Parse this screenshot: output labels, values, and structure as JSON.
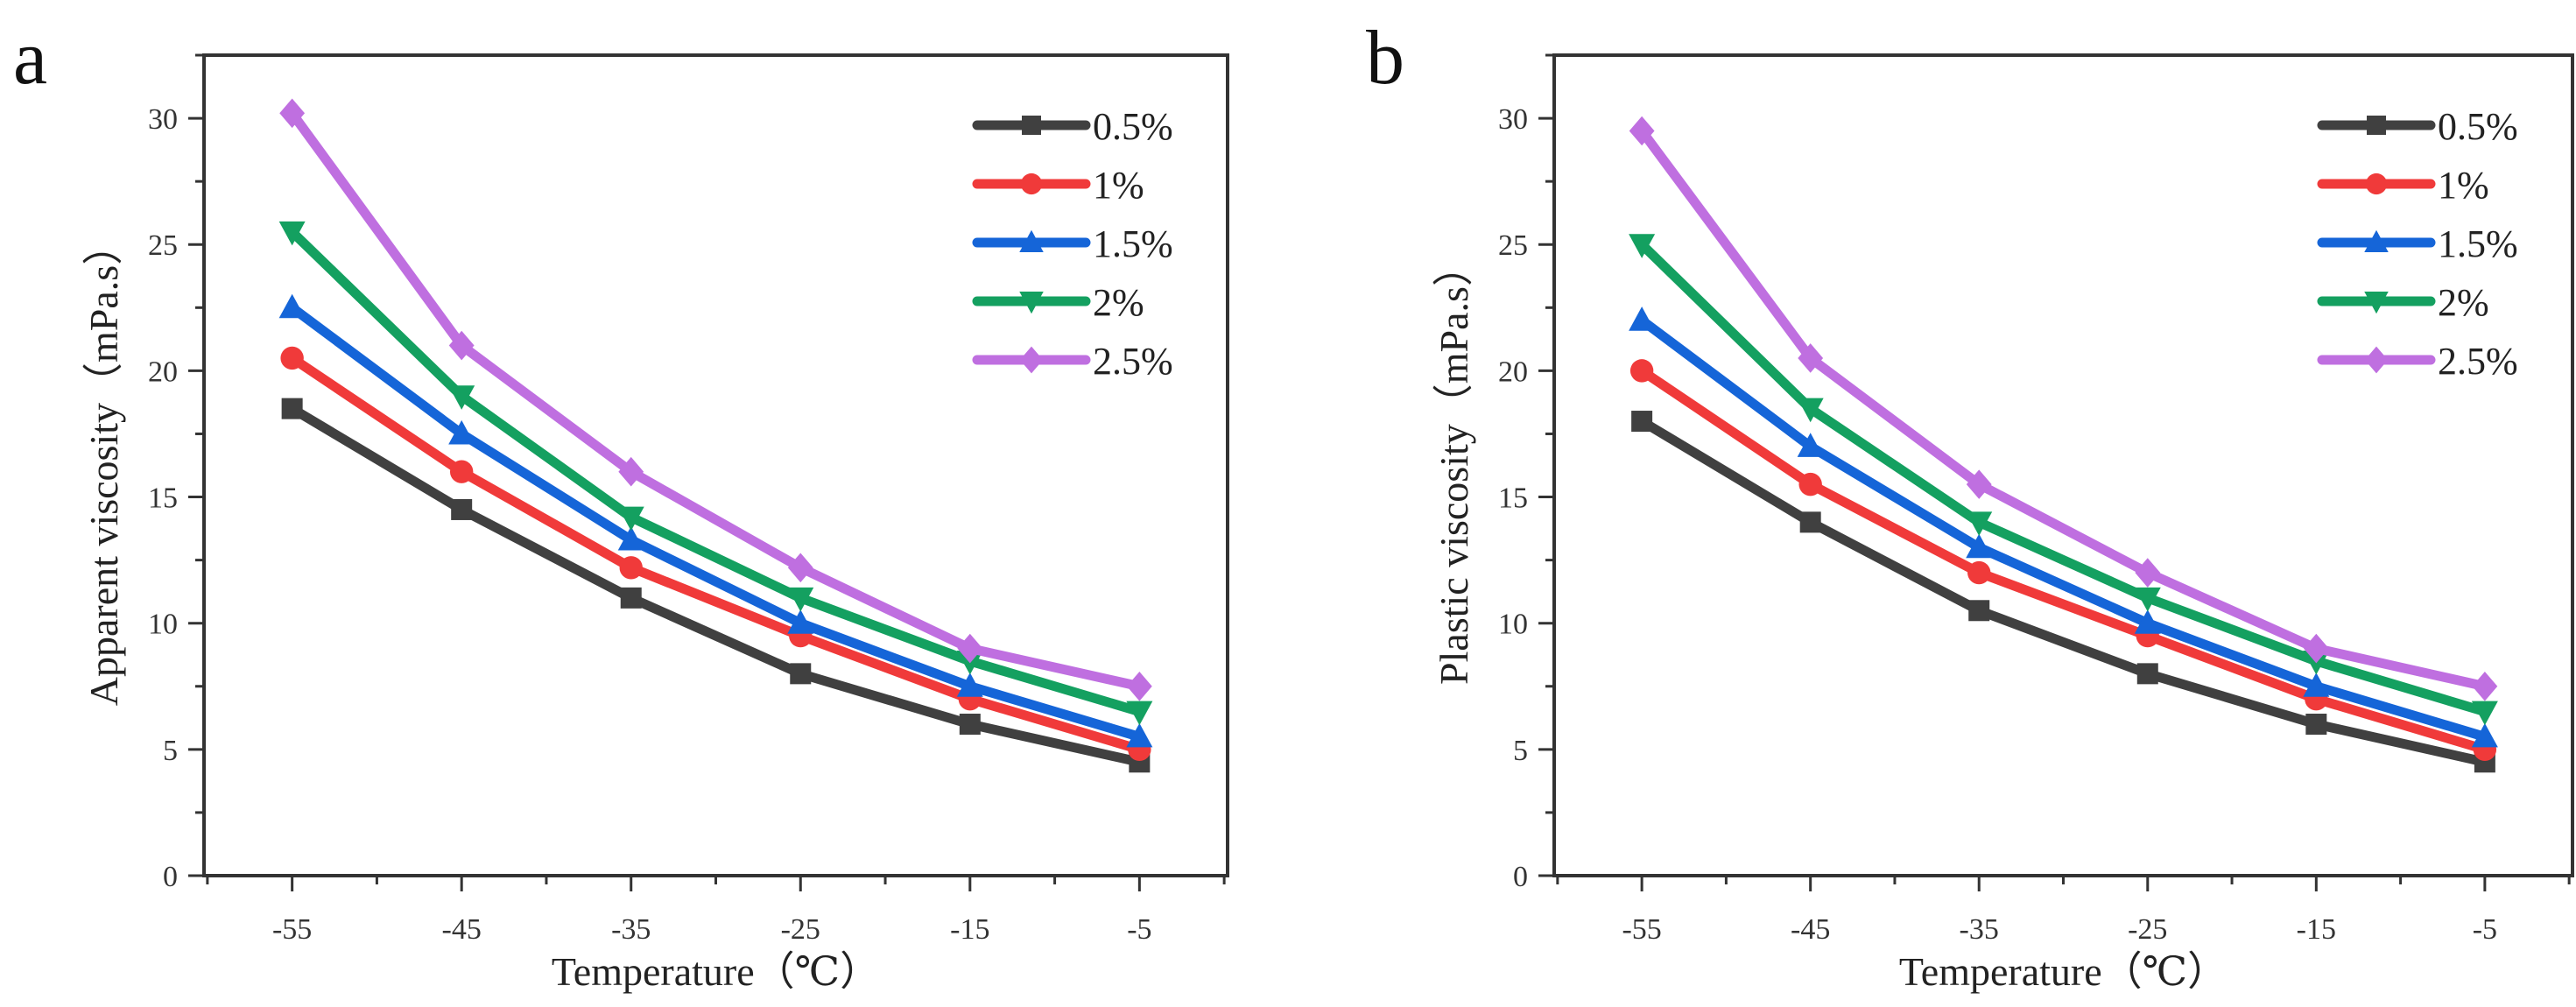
{
  "chart_data": [
    {
      "type": "line",
      "panel_label": "a",
      "title": "",
      "xlabel": "Temperature（℃）",
      "ylabel": "Apparent viscosity（mPa.s）",
      "x": [
        -55,
        -45,
        -35,
        -25,
        -15,
        -5
      ],
      "x_ticks": [
        "-55",
        "-45",
        "-35",
        "-25",
        "-15",
        "-5"
      ],
      "y_ticks": [
        "0",
        "5",
        "10",
        "15",
        "20",
        "25",
        "30"
      ],
      "xlim": [
        -60.2,
        0.2
      ],
      "ylim": [
        0,
        32.5
      ],
      "legend_position": "top-right",
      "series": [
        {
          "name": "0.5%",
          "color": "#404040",
          "marker": "square",
          "values": [
            18.5,
            14.5,
            11,
            8,
            6,
            4.5
          ]
        },
        {
          "name": "1%",
          "color": "#f03a3a",
          "marker": "circle",
          "values": [
            20.5,
            16,
            12.2,
            9.5,
            7,
            5
          ]
        },
        {
          "name": "1.5%",
          "color": "#1565d8",
          "marker": "triangle-up",
          "values": [
            22.5,
            17.5,
            13.3,
            10,
            7.5,
            5.5
          ]
        },
        {
          "name": "2%",
          "color": "#14a060",
          "marker": "triangle-down",
          "values": [
            25.5,
            19,
            14.2,
            11,
            8.5,
            6.5
          ]
        },
        {
          "name": "2.5%",
          "color": "#bf6fe0",
          "marker": "diamond",
          "values": [
            30.2,
            21,
            16,
            12.2,
            9,
            7.5
          ]
        }
      ]
    },
    {
      "type": "line",
      "panel_label": "b",
      "title": "",
      "xlabel": "Temperature（℃）",
      "ylabel": "Plastic viscosity（mPa.s）",
      "x": [
        -55,
        -45,
        -35,
        -25,
        -15,
        -5
      ],
      "x_ticks": [
        "-55",
        "-45",
        "-35",
        "-25",
        "-15",
        "-5"
      ],
      "y_ticks": [
        "0",
        "5",
        "10",
        "15",
        "20",
        "25",
        "30"
      ],
      "xlim": [
        -60.2,
        0.2
      ],
      "ylim": [
        0,
        32.5
      ],
      "legend_position": "top-right",
      "series": [
        {
          "name": "0.5%",
          "color": "#404040",
          "marker": "square",
          "values": [
            18,
            14,
            10.5,
            8,
            6,
            4.5
          ]
        },
        {
          "name": "1%",
          "color": "#f03a3a",
          "marker": "circle",
          "values": [
            20,
            15.5,
            12,
            9.5,
            7,
            5
          ]
        },
        {
          "name": "1.5%",
          "color": "#1565d8",
          "marker": "triangle-up",
          "values": [
            22,
            17,
            13,
            10,
            7.5,
            5.5
          ]
        },
        {
          "name": "2%",
          "color": "#14a060",
          "marker": "triangle-down",
          "values": [
            25,
            18.5,
            14,
            11,
            8.5,
            6.5
          ]
        },
        {
          "name": "2.5%",
          "color": "#bf6fe0",
          "marker": "diamond",
          "values": [
            29.5,
            20.5,
            15.5,
            12,
            9,
            7.5
          ]
        }
      ]
    }
  ]
}
